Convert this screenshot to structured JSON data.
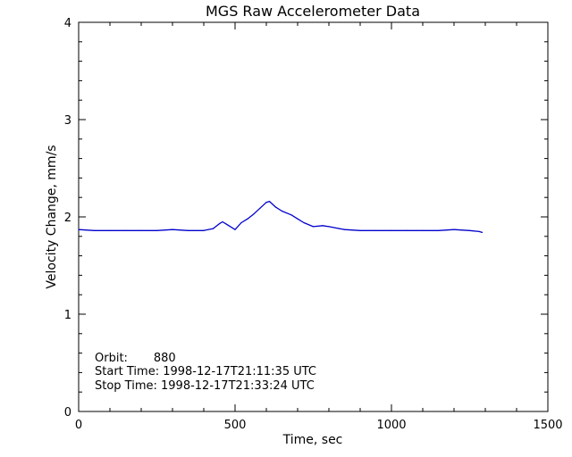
{
  "chart_data": {
    "type": "line",
    "title": "MGS Raw Accelerometer Data",
    "xlabel": "Time, sec",
    "ylabel": "Velocity Change, mm/s",
    "xlim": [
      0,
      1500
    ],
    "ylim": [
      0,
      4
    ],
    "x_ticks": [
      0,
      500,
      1000,
      1500
    ],
    "y_ticks": [
      0,
      1,
      2,
      3,
      4
    ],
    "x_tick_labels": [
      "0",
      "500",
      "1000",
      "1500"
    ],
    "y_tick_labels": [
      "0",
      "1",
      "2",
      "3",
      "4"
    ],
    "grid": false,
    "series": [
      {
        "color": "#0000cc",
        "x": [
          0,
          50,
          100,
          150,
          200,
          250,
          300,
          350,
          400,
          430,
          450,
          460,
          480,
          500,
          520,
          540,
          560,
          580,
          600,
          610,
          630,
          650,
          680,
          700,
          720,
          750,
          780,
          800,
          850,
          900,
          950,
          1000,
          1050,
          1100,
          1150,
          1200,
          1250,
          1280,
          1290
        ],
        "y": [
          1.87,
          1.86,
          1.86,
          1.86,
          1.86,
          1.86,
          1.87,
          1.86,
          1.86,
          1.88,
          1.93,
          1.95,
          1.91,
          1.87,
          1.94,
          1.98,
          2.03,
          2.09,
          2.15,
          2.16,
          2.1,
          2.06,
          2.02,
          1.98,
          1.94,
          1.9,
          1.91,
          1.9,
          1.87,
          1.86,
          1.86,
          1.86,
          1.86,
          1.86,
          1.86,
          1.87,
          1.86,
          1.85,
          1.84
        ]
      }
    ],
    "annotations": [
      "Orbit:       880",
      "Start Time: 1998-12-17T21:11:35 UTC",
      "Stop Time: 1998-12-17T21:33:24 UTC"
    ]
  }
}
